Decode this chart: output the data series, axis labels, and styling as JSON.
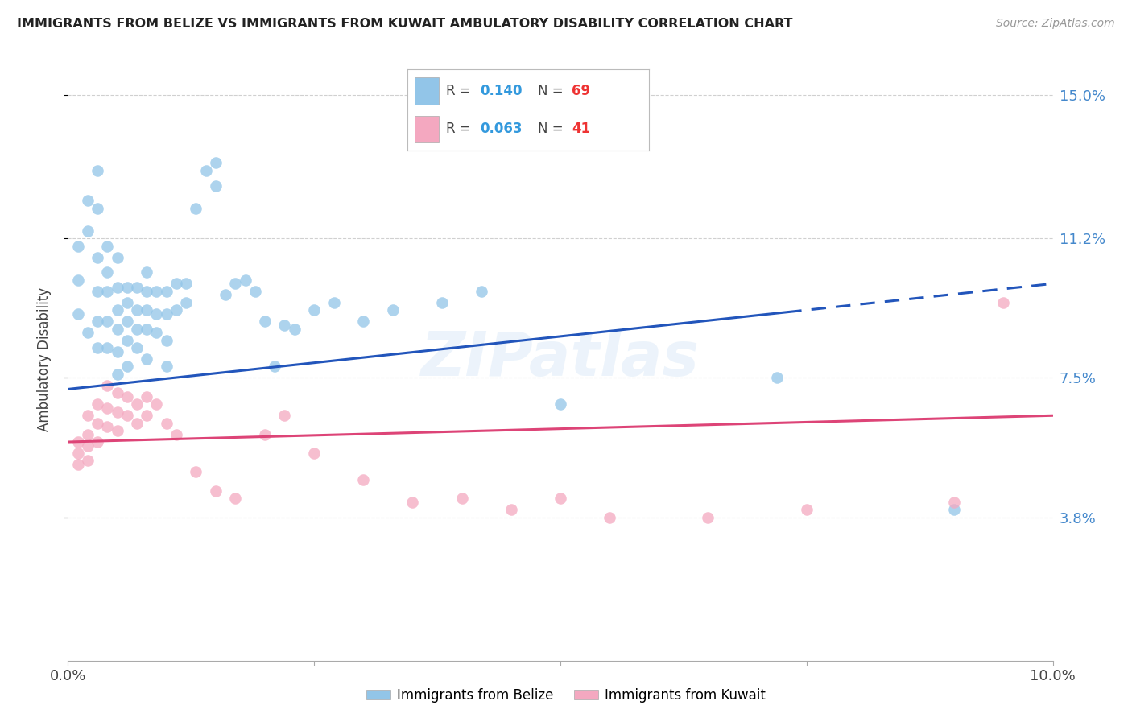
{
  "title": "IMMIGRANTS FROM BELIZE VS IMMIGRANTS FROM KUWAIT AMBULATORY DISABILITY CORRELATION CHART",
  "source": "Source: ZipAtlas.com",
  "ylabel": "Ambulatory Disability",
  "xlim": [
    0,
    0.1
  ],
  "ylim": [
    0.0,
    0.16
  ],
  "ytick_values": [
    0.038,
    0.075,
    0.112,
    0.15
  ],
  "ytick_labels": [
    "3.8%",
    "7.5%",
    "11.2%",
    "15.0%"
  ],
  "belize_color": "#92C5E8",
  "kuwait_color": "#F4A8C0",
  "belize_R": 0.14,
  "belize_N": 69,
  "kuwait_R": 0.063,
  "kuwait_N": 41,
  "trend_blue": "#2255BB",
  "trend_pink": "#DD4477",
  "belize_points_x": [
    0.001,
    0.001,
    0.001,
    0.002,
    0.002,
    0.002,
    0.003,
    0.003,
    0.003,
    0.003,
    0.003,
    0.003,
    0.004,
    0.004,
    0.004,
    0.004,
    0.004,
    0.005,
    0.005,
    0.005,
    0.005,
    0.005,
    0.005,
    0.006,
    0.006,
    0.006,
    0.006,
    0.006,
    0.007,
    0.007,
    0.007,
    0.007,
    0.008,
    0.008,
    0.008,
    0.008,
    0.008,
    0.009,
    0.009,
    0.009,
    0.01,
    0.01,
    0.01,
    0.01,
    0.011,
    0.011,
    0.012,
    0.012,
    0.013,
    0.014,
    0.015,
    0.015,
    0.016,
    0.017,
    0.018,
    0.019,
    0.02,
    0.021,
    0.022,
    0.023,
    0.025,
    0.027,
    0.03,
    0.033,
    0.038,
    0.042,
    0.05,
    0.072,
    0.09
  ],
  "belize_points_y": [
    0.11,
    0.101,
    0.092,
    0.122,
    0.114,
    0.087,
    0.13,
    0.12,
    0.107,
    0.098,
    0.09,
    0.083,
    0.11,
    0.103,
    0.098,
    0.09,
    0.083,
    0.107,
    0.099,
    0.093,
    0.088,
    0.082,
    0.076,
    0.099,
    0.095,
    0.09,
    0.085,
    0.078,
    0.099,
    0.093,
    0.088,
    0.083,
    0.103,
    0.098,
    0.093,
    0.088,
    0.08,
    0.098,
    0.092,
    0.087,
    0.098,
    0.092,
    0.085,
    0.078,
    0.1,
    0.093,
    0.1,
    0.095,
    0.12,
    0.13,
    0.132,
    0.126,
    0.097,
    0.1,
    0.101,
    0.098,
    0.09,
    0.078,
    0.089,
    0.088,
    0.093,
    0.095,
    0.09,
    0.093,
    0.095,
    0.098,
    0.068,
    0.075,
    0.04
  ],
  "kuwait_points_x": [
    0.001,
    0.001,
    0.001,
    0.002,
    0.002,
    0.002,
    0.002,
    0.003,
    0.003,
    0.003,
    0.004,
    0.004,
    0.004,
    0.005,
    0.005,
    0.005,
    0.006,
    0.006,
    0.007,
    0.007,
    0.008,
    0.008,
    0.009,
    0.01,
    0.011,
    0.013,
    0.015,
    0.017,
    0.02,
    0.022,
    0.025,
    0.03,
    0.035,
    0.04,
    0.045,
    0.05,
    0.055,
    0.065,
    0.075,
    0.09,
    0.095
  ],
  "kuwait_points_y": [
    0.058,
    0.055,
    0.052,
    0.065,
    0.06,
    0.057,
    0.053,
    0.068,
    0.063,
    0.058,
    0.073,
    0.067,
    0.062,
    0.071,
    0.066,
    0.061,
    0.07,
    0.065,
    0.068,
    0.063,
    0.07,
    0.065,
    0.068,
    0.063,
    0.06,
    0.05,
    0.045,
    0.043,
    0.06,
    0.065,
    0.055,
    0.048,
    0.042,
    0.043,
    0.04,
    0.043,
    0.038,
    0.038,
    0.04,
    0.042,
    0.095
  ],
  "background_color": "#ffffff",
  "grid_color": "#d0d0d0"
}
